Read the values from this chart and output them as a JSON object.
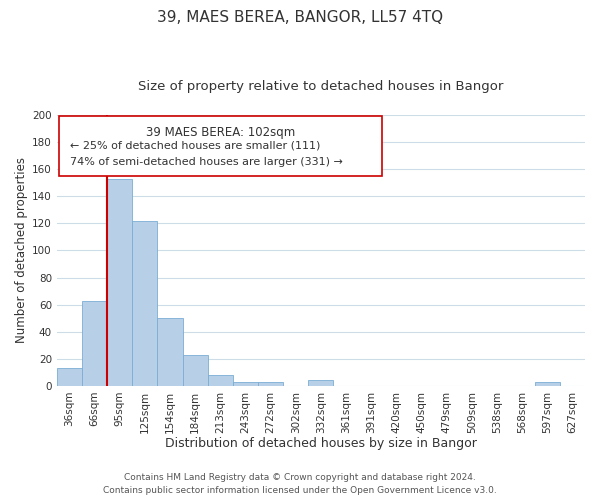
{
  "title": "39, MAES BEREA, BANGOR, LL57 4TQ",
  "subtitle": "Size of property relative to detached houses in Bangor",
  "xlabel": "Distribution of detached houses by size in Bangor",
  "ylabel": "Number of detached properties",
  "bar_labels": [
    "36sqm",
    "66sqm",
    "95sqm",
    "125sqm",
    "154sqm",
    "184sqm",
    "213sqm",
    "243sqm",
    "272sqm",
    "302sqm",
    "332sqm",
    "361sqm",
    "391sqm",
    "420sqm",
    "450sqm",
    "479sqm",
    "509sqm",
    "538sqm",
    "568sqm",
    "597sqm",
    "627sqm"
  ],
  "bar_values": [
    13,
    63,
    153,
    122,
    50,
    23,
    8,
    3,
    3,
    0,
    4,
    0,
    0,
    0,
    0,
    0,
    0,
    0,
    0,
    3,
    0
  ],
  "bar_color": "#b8cfe8",
  "bar_edge_color": "#7aadd4",
  "vline_x": 2.5,
  "vline_color": "#cc0000",
  "ylim": [
    0,
    200
  ],
  "yticks": [
    0,
    20,
    40,
    60,
    80,
    100,
    120,
    140,
    160,
    180,
    200
  ],
  "annotation_title": "39 MAES BEREA: 102sqm",
  "annotation_line1": "← 25% of detached houses are smaller (111)",
  "annotation_line2": "74% of semi-detached houses are larger (331) →",
  "annotation_box_facecolor": "#ffffff",
  "annotation_box_edgecolor": "#cc0000",
  "footer_line1": "Contains HM Land Registry data © Crown copyright and database right 2024.",
  "footer_line2": "Contains public sector information licensed under the Open Government Licence v3.0.",
  "bg_color": "#ffffff",
  "grid_color": "#ccdde8",
  "title_fontsize": 11,
  "subtitle_fontsize": 9.5,
  "xlabel_fontsize": 9,
  "ylabel_fontsize": 8.5,
  "tick_fontsize": 7.5,
  "footer_fontsize": 6.5,
  "ann_title_fontsize": 8.5,
  "ann_text_fontsize": 8
}
